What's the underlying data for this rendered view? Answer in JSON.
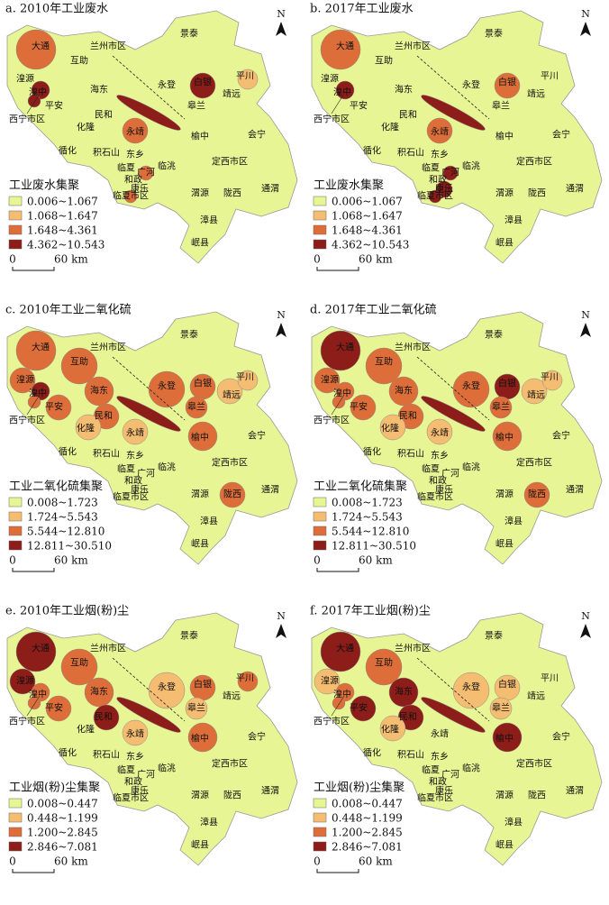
{
  "places": [
    "大通",
    "湟源",
    "湟中",
    "西宁市区",
    "互助",
    "平安",
    "海东",
    "兰州市区",
    "民和",
    "化隆",
    "循化",
    "积石山",
    "东乡",
    "永靖",
    "永登",
    "景泰",
    "靖远",
    "平川",
    "白银",
    "皋兰",
    "榆中",
    "会宁",
    "定西市区",
    "临洮",
    "临夏",
    "和政",
    "广河",
    "康乐",
    "临夏市区",
    "渭源",
    "陇西",
    "通渭",
    "漳县",
    "岷县"
  ],
  "scale_labels": [
    "0",
    "60 km"
  ],
  "north": "N",
  "panels": [
    {
      "title": "a. 2010年工业废水",
      "legend_title": "工业废水集聚",
      "legend": [
        {
          "label": "0.006~1.067",
          "color": "#e8f594"
        },
        {
          "label": "1.068~1.647",
          "color": "#f5bd72"
        },
        {
          "label": "1.648~4.361",
          "color": "#dd6e3a"
        },
        {
          "label": "4.362~10.543",
          "color": "#8c1d18"
        }
      ],
      "region_class": [
        2,
        0,
        3,
        3,
        0,
        0,
        0,
        3,
        0,
        0,
        0,
        0,
        0,
        2,
        0,
        0,
        0,
        1,
        3,
        0,
        0,
        0,
        0,
        0,
        0,
        0,
        2,
        0,
        2,
        0,
        0,
        0,
        0,
        0
      ]
    },
    {
      "title": "b. 2017年工业废水",
      "legend_title": "工业废水集聚",
      "legend": [
        {
          "label": "0.006~1.067",
          "color": "#e8f594"
        },
        {
          "label": "1.068~1.647",
          "color": "#f5bd72"
        },
        {
          "label": "1.648~4.361",
          "color": "#dd6e3a"
        },
        {
          "label": "4.362~10.543",
          "color": "#8c1d18"
        }
      ],
      "region_class": [
        2,
        0,
        3,
        0,
        0,
        0,
        0,
        3,
        0,
        0,
        0,
        0,
        0,
        2,
        0,
        0,
        0,
        0,
        2,
        0,
        0,
        0,
        0,
        0,
        0,
        0,
        3,
        3,
        3,
        0,
        0,
        0,
        0,
        0
      ]
    },
    {
      "title": "c. 2010年工业二氧化硫",
      "legend_title": "工业二氧化硫集聚",
      "legend": [
        {
          "label": "0.008~1.723",
          "color": "#e8f594"
        },
        {
          "label": "1.724~5.543",
          "color": "#f5bd72"
        },
        {
          "label": "5.544~12.810",
          "color": "#dd6e3a"
        },
        {
          "label": "12.811~30.510",
          "color": "#8c1d18"
        }
      ],
      "region_class": [
        2,
        2,
        3,
        2,
        2,
        2,
        2,
        3,
        2,
        1,
        0,
        0,
        0,
        1,
        2,
        0,
        1,
        1,
        2,
        2,
        2,
        0,
        0,
        0,
        0,
        0,
        0,
        0,
        0,
        0,
        2,
        0,
        0,
        0
      ]
    },
    {
      "title": "d. 2017年工业二氧化硫",
      "legend_title": "工业二氧化硫集聚",
      "legend": [
        {
          "label": "0.008~1.723",
          "color": "#e8f594"
        },
        {
          "label": "1.724~5.543",
          "color": "#f5bd72"
        },
        {
          "label": "5.544~12.810",
          "color": "#dd6e3a"
        },
        {
          "label": "12.811~30.510",
          "color": "#8c1d18"
        }
      ],
      "region_class": [
        3,
        2,
        2,
        2,
        2,
        2,
        2,
        3,
        2,
        1,
        0,
        0,
        0,
        1,
        2,
        0,
        1,
        1,
        3,
        2,
        2,
        0,
        0,
        0,
        0,
        0,
        0,
        0,
        0,
        0,
        2,
        0,
        0,
        0
      ]
    },
    {
      "title": "e. 2010年工业烟(粉)尘",
      "legend_title": "工业烟(粉)尘集聚",
      "legend": [
        {
          "label": "0.008~0.447",
          "color": "#e8f594"
        },
        {
          "label": "0.448~1.199",
          "color": "#f5bd72"
        },
        {
          "label": "1.200~2.845",
          "color": "#dd6e3a"
        },
        {
          "label": "2.846~7.081",
          "color": "#8c1d18"
        }
      ],
      "region_class": [
        3,
        3,
        2,
        2,
        2,
        2,
        2,
        3,
        3,
        0,
        0,
        0,
        0,
        1,
        1,
        0,
        0,
        2,
        2,
        1,
        2,
        0,
        0,
        0,
        0,
        0,
        0,
        0,
        0,
        0,
        0,
        0,
        0,
        0
      ]
    },
    {
      "title": "f. 2017年工业烟(粉)尘",
      "legend_title": "工业烟(粉)尘集聚",
      "legend": [
        {
          "label": "0.008~0.447",
          "color": "#e8f594"
        },
        {
          "label": "0.448~1.199",
          "color": "#f5bd72"
        },
        {
          "label": "1.200~2.845",
          "color": "#dd6e3a"
        },
        {
          "label": "2.846~7.081",
          "color": "#8c1d18"
        }
      ],
      "region_class": [
        3,
        1,
        2,
        2,
        2,
        3,
        3,
        3,
        3,
        1,
        0,
        0,
        0,
        0,
        1,
        0,
        0,
        0,
        1,
        1,
        3,
        0,
        0,
        0,
        0,
        0,
        0,
        0,
        0,
        0,
        0,
        0,
        0,
        0
      ]
    }
  ]
}
